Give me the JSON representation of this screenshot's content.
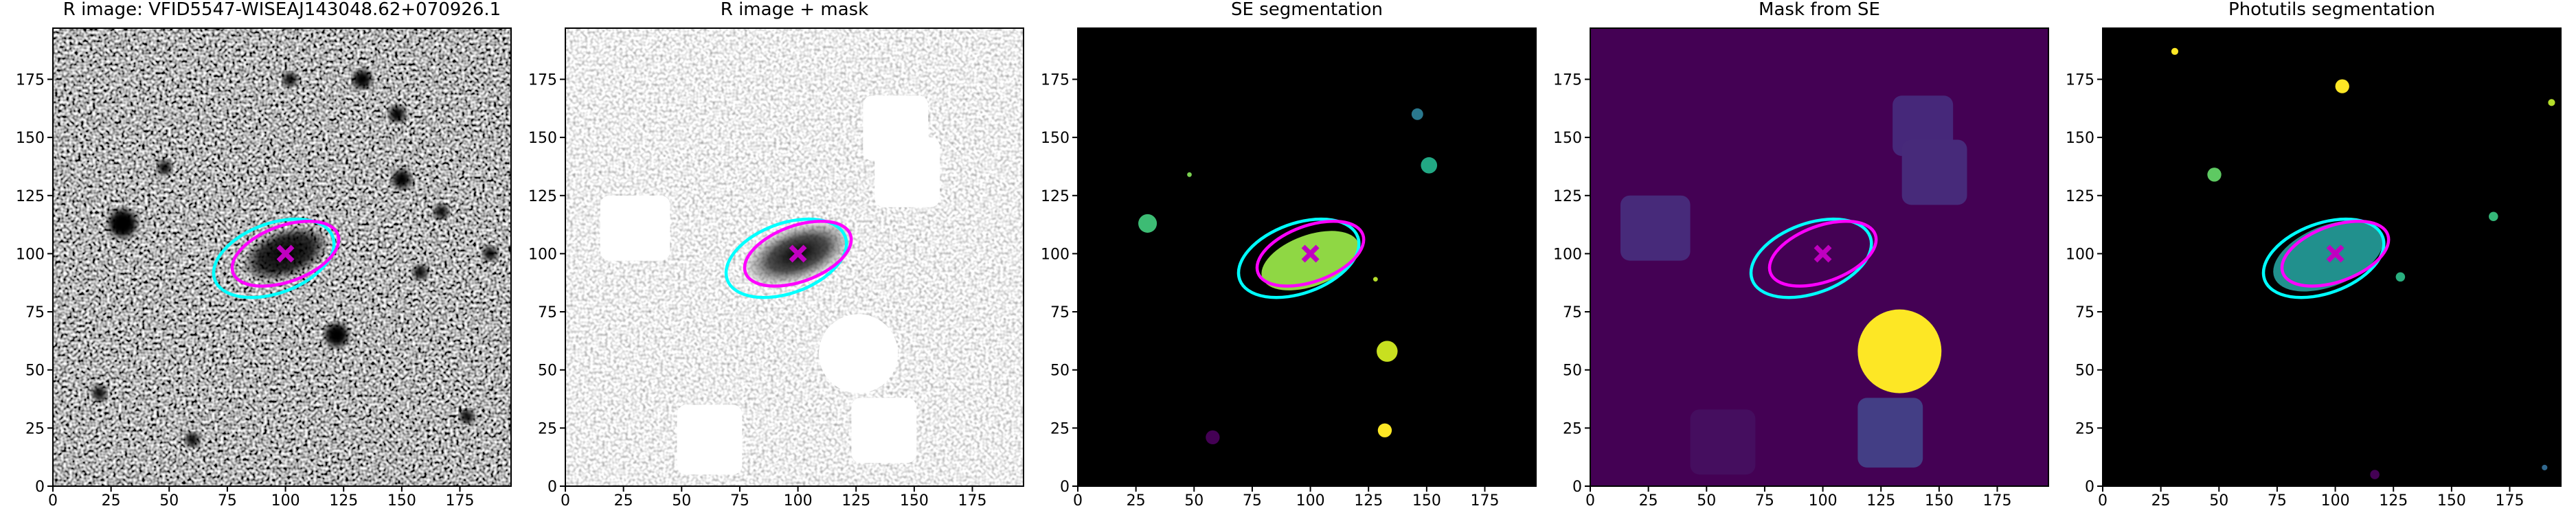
{
  "chart_data": [
    {
      "type": "image",
      "title": "R image: VFID5547-WISEAJ143048.62+070926.1",
      "background": "noise-dark",
      "xlim": [
        0,
        197
      ],
      "ylim": [
        0,
        197
      ],
      "xticks": [
        0,
        25,
        50,
        75,
        100,
        125,
        150,
        175
      ],
      "yticks": [
        0,
        25,
        50,
        75,
        100,
        125,
        150,
        175
      ],
      "ellipses": [
        {
          "color": "#00ffff",
          "x": 95,
          "y": 98,
          "a": 27,
          "b": 15,
          "angle": 20
        },
        {
          "color": "#ff00ff",
          "x": 100,
          "y": 100,
          "a": 24,
          "b": 12,
          "angle": 20
        }
      ],
      "marker": {
        "x": 100,
        "y": 100,
        "color": "#c000c0"
      }
    },
    {
      "type": "image",
      "title": "R image + mask",
      "background": "noise-light",
      "xlim": [
        0,
        197
      ],
      "ylim": [
        0,
        197
      ],
      "xticks": [
        0,
        25,
        50,
        75,
        100,
        125,
        150,
        175
      ],
      "yticks": [
        0,
        25,
        50,
        75,
        100,
        125,
        150,
        175
      ],
      "ellipses": [
        {
          "color": "#00ffff",
          "x": 95,
          "y": 98,
          "a": 27,
          "b": 15,
          "angle": 20
        },
        {
          "color": "#ff00ff",
          "x": 100,
          "y": 100,
          "a": 24,
          "b": 12,
          "angle": 20
        }
      ],
      "marker": {
        "x": 100,
        "y": 100,
        "color": "#c000c0"
      }
    },
    {
      "type": "image",
      "title": "SE segmentation",
      "background": "se-seg",
      "xlim": [
        0,
        197
      ],
      "ylim": [
        0,
        197
      ],
      "xticks": [
        0,
        25,
        50,
        75,
        100,
        125,
        150,
        175
      ],
      "yticks": [
        0,
        25,
        50,
        75,
        100,
        125,
        150,
        175
      ],
      "ellipses": [
        {
          "color": "#00ffff",
          "x": 95,
          "y": 98,
          "a": 27,
          "b": 15,
          "angle": 20
        },
        {
          "color": "#ff00ff",
          "x": 100,
          "y": 100,
          "a": 24,
          "b": 12,
          "angle": 20
        }
      ],
      "marker": {
        "x": 100,
        "y": 100,
        "color": "#c000c0"
      }
    },
    {
      "type": "image",
      "title": "Mask from SE",
      "background": "se-mask",
      "xlim": [
        0,
        197
      ],
      "ylim": [
        0,
        197
      ],
      "xticks": [
        0,
        25,
        50,
        75,
        100,
        125,
        150,
        175
      ],
      "yticks": [
        0,
        25,
        50,
        75,
        100,
        125,
        150,
        175
      ],
      "ellipses": [
        {
          "color": "#00ffff",
          "x": 95,
          "y": 98,
          "a": 27,
          "b": 15,
          "angle": 20
        },
        {
          "color": "#ff00ff",
          "x": 100,
          "y": 100,
          "a": 24,
          "b": 12,
          "angle": 20
        }
      ],
      "marker": {
        "x": 100,
        "y": 100,
        "color": "#c000c0"
      }
    },
    {
      "type": "image",
      "title": "Photutils segmentation",
      "background": "phot-seg",
      "xlim": [
        0,
        197
      ],
      "ylim": [
        0,
        197
      ],
      "xticks": [
        0,
        25,
        50,
        75,
        100,
        125,
        150,
        175
      ],
      "yticks": [
        0,
        25,
        50,
        75,
        100,
        125,
        150,
        175
      ],
      "ellipses": [
        {
          "color": "#00ffff",
          "x": 95,
          "y": 98,
          "a": 27,
          "b": 15,
          "angle": 20
        },
        {
          "color": "#ff00ff",
          "x": 100,
          "y": 100,
          "a": 24,
          "b": 12,
          "angle": 20
        }
      ],
      "marker": {
        "x": 100,
        "y": 100,
        "color": "#c000c0"
      }
    }
  ]
}
